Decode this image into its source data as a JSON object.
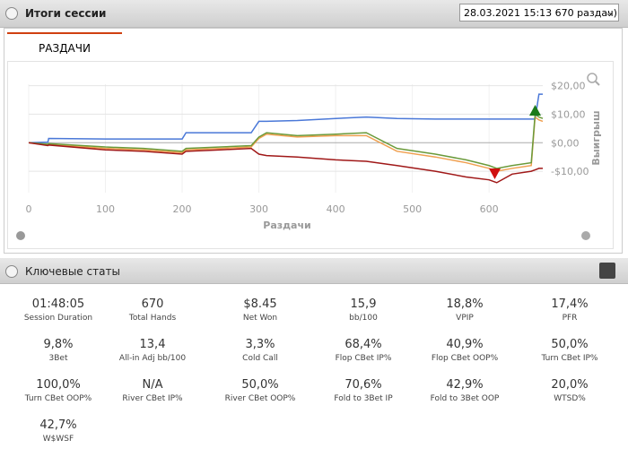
{
  "header": {
    "title": "Итоги сессии",
    "session_select": "28.03.2021 15:13 670 раздач)"
  },
  "tab": "РАЗДАЧИ",
  "chart_data": {
    "type": "line",
    "x_label": "Раздачи",
    "y_label": "Выигрыш",
    "x": [
      0,
      25,
      26,
      100,
      150,
      200,
      205,
      250,
      290,
      300,
      310,
      350,
      400,
      440,
      480,
      530,
      570,
      600,
      610,
      630,
      655,
      660,
      665,
      670
    ],
    "series": [
      {
        "color": "#4a78d8",
        "values": [
          0,
          0.2,
          1.5,
          1.3,
          1.3,
          1.3,
          3.5,
          3.5,
          3.5,
          7.5,
          7.5,
          7.8,
          8.5,
          9,
          8.5,
          8.3,
          8.3,
          8.3,
          8.3,
          8.3,
          8.3,
          8.3,
          17,
          17
        ]
      },
      {
        "color": "#f0a050",
        "values": [
          0,
          -0.8,
          -0.6,
          -2,
          -2.5,
          -3.5,
          -2.5,
          -2,
          -1.5,
          1.5,
          3,
          2,
          2.5,
          2.5,
          -3,
          -5,
          -7,
          -9,
          -10,
          -9,
          -8,
          9,
          8,
          7.5
        ]
      },
      {
        "color": "#6a9a3a",
        "values": [
          0,
          -0.5,
          -0.3,
          -1.5,
          -2,
          -3,
          -2,
          -1.5,
          -1,
          2,
          3.5,
          2.5,
          3,
          3.5,
          -2,
          -4,
          -6,
          -8,
          -9,
          -8,
          -7,
          10,
          9,
          8.5
        ]
      },
      {
        "color": "#a01818",
        "values": [
          0,
          -1,
          -0.8,
          -2.5,
          -3,
          -4,
          -3,
          -2.5,
          -2,
          -4,
          -4.5,
          -5,
          -6,
          -6.5,
          -8,
          -10,
          -12,
          -13,
          -14,
          -11,
          -10,
          -9.5,
          -9,
          -9
        ]
      }
    ],
    "xlim": [
      0,
      670
    ],
    "xticks": [
      0,
      100,
      200,
      300,
      400,
      500,
      600
    ],
    "ylim": [
      -17.5,
      20.5
    ],
    "yticks": [
      {
        "value": 20,
        "label": "$20,00"
      },
      {
        "value": 10,
        "label": "$10,00"
      },
      {
        "value": 0,
        "label": "$0,00"
      },
      {
        "value": -10,
        "label": "-$10,00"
      }
    ],
    "grid": true
  },
  "stats_title": "Ключевые статы",
  "stats": [
    {
      "value": "01:48:05",
      "label": "Session Duration"
    },
    {
      "value": "670",
      "label": "Total Hands"
    },
    {
      "value": "$8.45",
      "label": "Net Won"
    },
    {
      "value": "15,9",
      "label": "bb/100"
    },
    {
      "value": "18,8%",
      "label": "VPIP"
    },
    {
      "value": "17,4%",
      "label": "PFR"
    },
    {
      "value": "9,8%",
      "label": "3Bet"
    },
    {
      "value": "13,4",
      "label": "All-in Adj bb/100"
    },
    {
      "value": "3,3%",
      "label": "Cold Call"
    },
    {
      "value": "68,4%",
      "label": "Flop CBet IP%"
    },
    {
      "value": "40,9%",
      "label": "Flop CBet OOP%"
    },
    {
      "value": "50,0%",
      "label": "Turn CBet IP%"
    },
    {
      "value": "100,0%",
      "label": "Turn CBet OOP%"
    },
    {
      "value": "N/A",
      "label": "River CBet IP%"
    },
    {
      "value": "50,0%",
      "label": "River CBet OOP%"
    },
    {
      "value": "70,6%",
      "label": "Fold to 3Bet IP"
    },
    {
      "value": "42,9%",
      "label": "Fold to 3Bet OOP"
    },
    {
      "value": "20,0%",
      "label": "WTSD%"
    },
    {
      "value": "42,7%",
      "label": "W$WSF"
    }
  ]
}
